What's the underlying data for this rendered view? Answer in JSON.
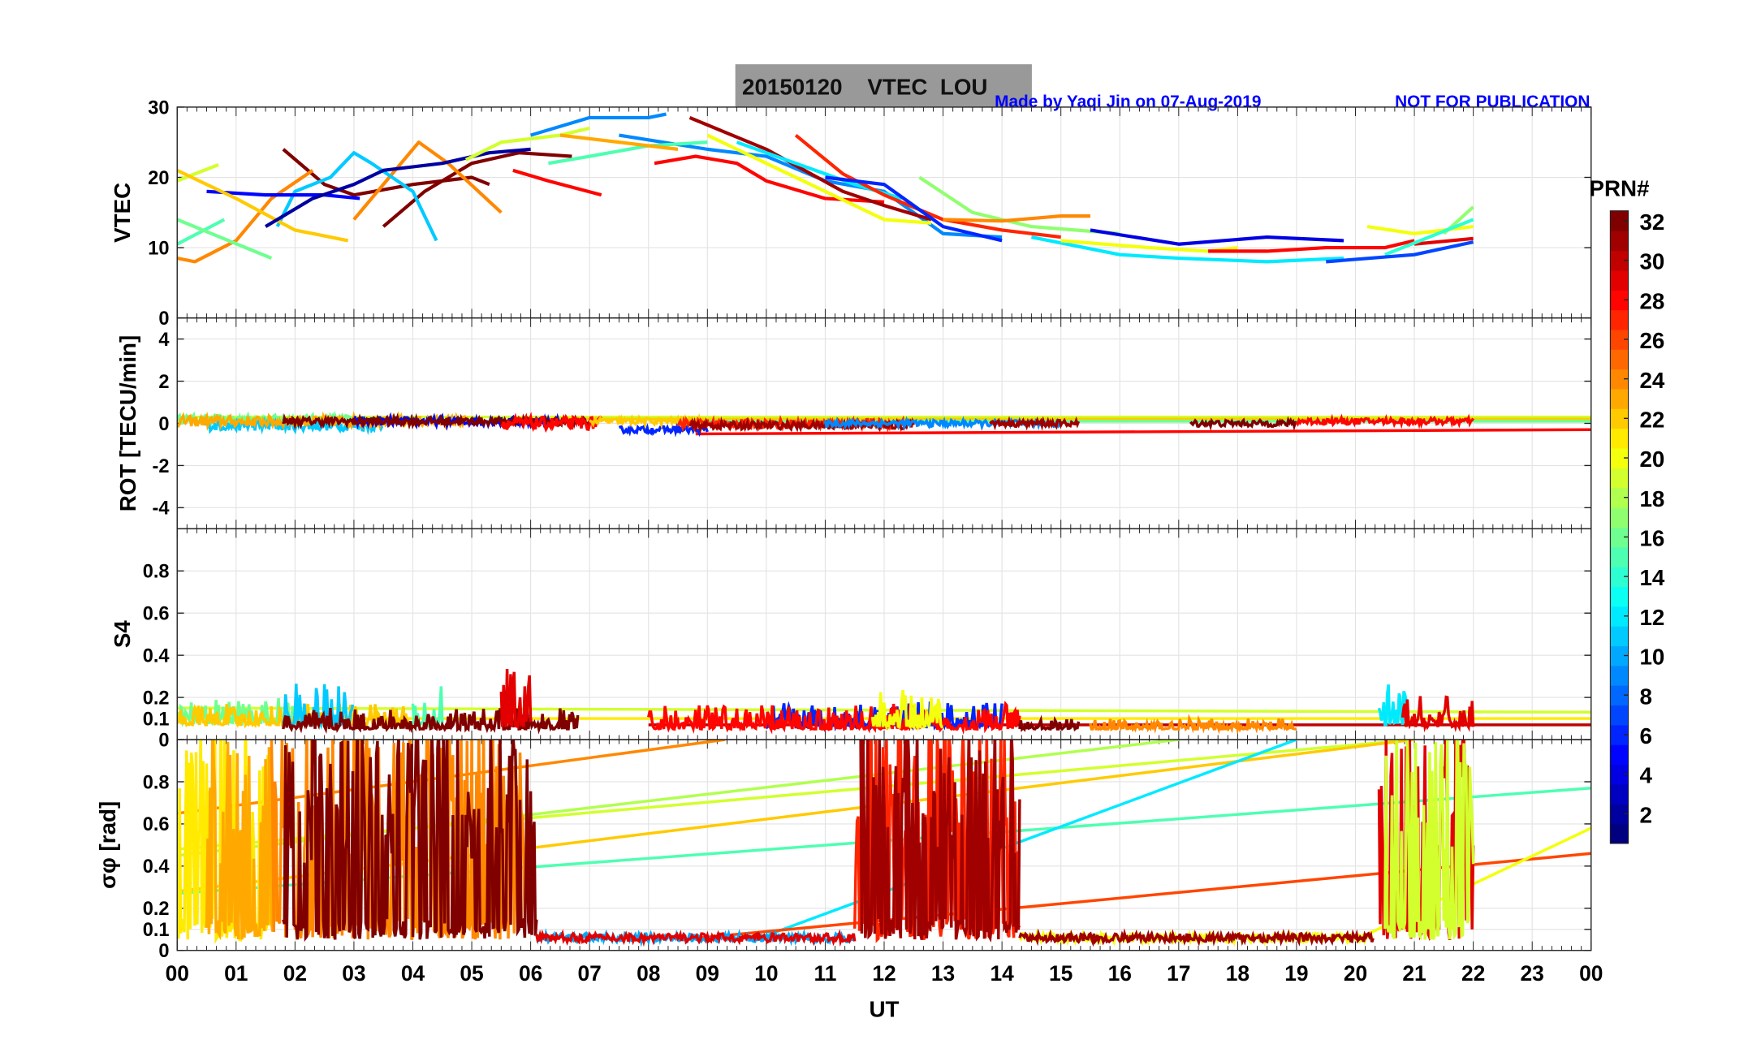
{
  "header": {
    "title": "20150120    VTEC  LOU",
    "credit": "Made by Yaqi Jin on 07-Aug-2019",
    "notice": "NOT FOR PUBLICATION"
  },
  "colorbar": {
    "label": "PRN#",
    "range": [
      1,
      32
    ],
    "ticks": [
      "2",
      "4",
      "6",
      "8",
      "10",
      "12",
      "14",
      "16",
      "18",
      "20",
      "22",
      "24",
      "26",
      "28",
      "30",
      "32"
    ]
  },
  "xaxis": {
    "label": "UT",
    "range": [
      0,
      24
    ],
    "ticks": [
      "00",
      "01",
      "02",
      "03",
      "04",
      "05",
      "06",
      "07",
      "08",
      "09",
      "10",
      "11",
      "12",
      "13",
      "14",
      "15",
      "16",
      "17",
      "18",
      "19",
      "20",
      "21",
      "22",
      "23",
      "00"
    ]
  },
  "chart_data": [
    {
      "type": "line",
      "name": "vtec",
      "ylabel": "VTEC",
      "ylim": [
        0,
        30
      ],
      "yticks": [
        0,
        10,
        20,
        30
      ],
      "ytick_labels": [
        "0",
        "10",
        "20",
        "30"
      ],
      "series": [
        {
          "prn": 32,
          "x": [
            1.8,
            2.5,
            3,
            4,
            5,
            5.3
          ],
          "y": [
            24,
            19,
            17.5,
            19,
            20,
            19
          ]
        },
        {
          "prn": 32,
          "x": [
            3.5,
            4.2,
            5,
            5.8,
            6.7
          ],
          "y": [
            13,
            18,
            22,
            23.5,
            23
          ]
        },
        {
          "prn": 24,
          "x": [
            0,
            0.3,
            1,
            1.6,
            2.3
          ],
          "y": [
            8.5,
            8,
            11,
            17,
            21
          ]
        },
        {
          "prn": 24,
          "x": [
            3,
            3.6,
            4.1,
            4.6,
            5.5
          ],
          "y": [
            14,
            20,
            25,
            22,
            15
          ]
        },
        {
          "prn": 11,
          "x": [
            1.7,
            2,
            2.6,
            3,
            3.3,
            4,
            4.4
          ],
          "y": [
            13,
            18,
            20,
            23.5,
            22,
            18,
            11
          ]
        },
        {
          "prn": 5,
          "x": [
            0.5,
            1.5,
            2.5,
            3.1
          ],
          "y": [
            18,
            17.5,
            17.5,
            17
          ]
        },
        {
          "prn": 15,
          "x": [
            0,
            0.8
          ],
          "y": [
            10.5,
            14
          ]
        },
        {
          "prn": 19,
          "x": [
            0,
            0.7
          ],
          "y": [
            19.5,
            21.8
          ]
        },
        {
          "prn": 16,
          "x": [
            0,
            1.6
          ],
          "y": [
            14,
            8.5
          ]
        },
        {
          "prn": 22,
          "x": [
            0,
            1,
            2,
            2.9
          ],
          "y": [
            21,
            17,
            12.5,
            11
          ]
        },
        {
          "prn": 2,
          "x": [
            1.5,
            2.3,
            3,
            3.5,
            4.5,
            5.3,
            6
          ],
          "y": [
            13,
            17,
            19,
            21,
            22,
            23.5,
            24
          ]
        },
        {
          "prn": 19,
          "x": [
            4.9,
            5.5,
            6.5,
            7
          ],
          "y": [
            22.5,
            25,
            26,
            27
          ]
        },
        {
          "prn": 9,
          "x": [
            6,
            7,
            8,
            8.3
          ],
          "y": [
            26,
            28.5,
            28.5,
            29
          ]
        },
        {
          "prn": 9,
          "x": [
            7.5,
            9,
            10,
            11,
            12,
            12.5,
            13,
            14
          ],
          "y": [
            26,
            24,
            23,
            19.5,
            18,
            15,
            12,
            11.5
          ]
        },
        {
          "prn": 15,
          "x": [
            6.3,
            7,
            8,
            9
          ],
          "y": [
            22,
            23,
            24.5,
            25
          ]
        },
        {
          "prn": 23,
          "x": [
            6.5,
            7.5,
            8.5
          ],
          "y": [
            26,
            25,
            24
          ]
        },
        {
          "prn": 28,
          "x": [
            8.1,
            8.8,
            9.5,
            10,
            11,
            12
          ],
          "y": [
            22,
            23,
            22,
            19.5,
            17,
            16.5
          ]
        },
        {
          "prn": 31,
          "x": [
            8.7,
            10,
            11.3,
            12,
            12.8
          ],
          "y": [
            28.5,
            24,
            18,
            16,
            14
          ]
        },
        {
          "prn": 12,
          "x": [
            9.5,
            10.5,
            11.5,
            12.3
          ],
          "y": [
            25,
            22,
            19,
            17
          ]
        },
        {
          "prn": 20,
          "x": [
            9,
            10,
            11,
            12,
            12.8
          ],
          "y": [
            26,
            22,
            18,
            14,
            13.5
          ]
        },
        {
          "prn": 27,
          "x": [
            10.5,
            11.3,
            12,
            13,
            14,
            15
          ],
          "y": [
            26,
            20.5,
            17.5,
            14,
            12.5,
            11.5
          ]
        },
        {
          "prn": 6,
          "x": [
            11,
            12,
            12.5,
            13,
            14
          ],
          "y": [
            20,
            19,
            16,
            13,
            11
          ]
        },
        {
          "prn": 17,
          "x": [
            12.6,
            13.5,
            14.5,
            16
          ],
          "y": [
            20,
            15,
            13,
            12
          ]
        },
        {
          "prn": 24,
          "x": [
            13,
            14,
            15,
            15.5
          ],
          "y": [
            14,
            13.8,
            14.5,
            14.5
          ]
        },
        {
          "prn": 4,
          "x": [
            15.5,
            17,
            18.5,
            19.8
          ],
          "y": [
            12.5,
            10.5,
            11.5,
            11
          ]
        },
        {
          "prn": 12,
          "x": [
            14.5,
            16,
            17,
            18.5,
            19.8
          ],
          "y": [
            11.5,
            9,
            8.5,
            8,
            8.5
          ]
        },
        {
          "prn": 20,
          "x": [
            15,
            16.5,
            17.5,
            18
          ],
          "y": [
            11,
            10,
            9.5,
            10
          ]
        },
        {
          "prn": 28,
          "x": [
            17.5,
            18.5,
            19.5,
            20.5,
            21
          ],
          "y": [
            9.5,
            9.5,
            10,
            10,
            11
          ]
        },
        {
          "prn": 29,
          "x": [
            21,
            22
          ],
          "y": [
            10.5,
            11.3
          ]
        },
        {
          "prn": 17,
          "x": [
            21.5,
            22
          ],
          "y": [
            12,
            15.8
          ]
        },
        {
          "prn": 20,
          "x": [
            20.2,
            21,
            22
          ],
          "y": [
            13,
            12,
            13
          ]
        },
        {
          "prn": 14,
          "x": [
            20.5,
            22
          ],
          "y": [
            9,
            14
          ]
        },
        {
          "prn": 7,
          "x": [
            19.5,
            21,
            22
          ],
          "y": [
            8,
            9,
            10.8
          ]
        },
        {
          "prn": 28,
          "x": [
            5.7,
            6.3,
            7.2
          ],
          "y": [
            21,
            19.5,
            17.5
          ]
        }
      ]
    },
    {
      "type": "line",
      "name": "rot",
      "ylabel": "ROT [TECU/min]",
      "ylim": [
        -5,
        5
      ],
      "yticks": [
        -4,
        -2,
        0,
        2,
        4
      ],
      "ytick_labels": [
        "-4",
        "-2",
        "0",
        "2",
        "4"
      ],
      "segments": [
        {
          "prn": 16,
          "start": 0,
          "end": 3,
          "level": 0.2,
          "amp": 0.4
        },
        {
          "prn": 11,
          "start": 0.5,
          "end": 3.5,
          "level": -0.1,
          "amp": 0.5
        },
        {
          "prn": 23,
          "start": 0,
          "end": 5,
          "level": 0.1,
          "amp": 0.5
        },
        {
          "prn": 5,
          "start": 3,
          "end": 6.5,
          "level": 0.1,
          "amp": 0.4
        },
        {
          "prn": 32,
          "start": 1.8,
          "end": 7,
          "level": 0.1,
          "amp": 0.35
        },
        {
          "prn": 28,
          "start": 5.5,
          "end": 7.2,
          "level": 0.0,
          "amp": 0.6
        },
        {
          "prn": 6,
          "start": 7.5,
          "end": 9,
          "level": -0.3,
          "amp": 0.3
        },
        {
          "prn": 22,
          "start": 7,
          "end": 9,
          "level": 0.1,
          "amp": 0.3
        },
        {
          "prn": 27,
          "start": 8.5,
          "end": 12.5,
          "level": 0.0,
          "amp": 0.4
        },
        {
          "prn": 31,
          "start": 8.7,
          "end": 12.5,
          "level": -0.1,
          "amp": 0.35
        },
        {
          "prn": 9,
          "start": 11,
          "end": 15,
          "level": 0.0,
          "amp": 0.3
        },
        {
          "prn": 31,
          "start": 13.8,
          "end": 15.3,
          "level": 0.0,
          "amp": 0.3
        },
        {
          "prn": 32,
          "start": 17.2,
          "end": 19,
          "level": 0.0,
          "amp": 0.3
        },
        {
          "prn": 28,
          "start": 19,
          "end": 22,
          "level": 0.1,
          "amp": 0.3
        }
      ],
      "lines": [
        {
          "prn": 19,
          "x": [
            0,
            24
          ],
          "y": [
            0.3,
            0.3
          ]
        },
        {
          "prn": 22,
          "x": [
            6,
            24
          ],
          "y": [
            0.2,
            0.2
          ]
        },
        {
          "prn": 28,
          "x": [
            8.8,
            24
          ],
          "y": [
            -0.5,
            -0.3
          ]
        },
        {
          "prn": 16,
          "x": [
            9,
            24
          ],
          "y": [
            0.1,
            0.1
          ]
        }
      ]
    },
    {
      "type": "line",
      "name": "s4",
      "ylabel": "S4",
      "ylim": [
        0,
        1
      ],
      "yticks": [
        0,
        0.1,
        0.2,
        0.4,
        0.6,
        0.8
      ],
      "ytick_labels": [
        "0",
        "0.1",
        "0.2",
        "0.4",
        "0.6",
        "0.8"
      ],
      "segments": [
        {
          "prn": 16,
          "start": 0,
          "end": 2,
          "base": 0.08,
          "amp": 0.12
        },
        {
          "prn": 22,
          "start": 0,
          "end": 4,
          "base": 0.07,
          "amp": 0.1
        },
        {
          "prn": 11,
          "start": 1.8,
          "end": 3,
          "base": 0.07,
          "amp": 0.2
        },
        {
          "prn": 15,
          "start": 4,
          "end": 4.5,
          "base": 0.07,
          "amp": 0.22
        },
        {
          "prn": 32,
          "start": 1.8,
          "end": 6.8,
          "base": 0.05,
          "amp": 0.1
        },
        {
          "prn": 29,
          "start": 5.5,
          "end": 6,
          "base": 0.06,
          "amp": 0.28
        },
        {
          "prn": 6,
          "start": 10,
          "end": 14,
          "base": 0.06,
          "amp": 0.12
        },
        {
          "prn": 28,
          "start": 8,
          "end": 14.3,
          "base": 0.05,
          "amp": 0.12
        },
        {
          "prn": 20,
          "start": 11.8,
          "end": 13,
          "base": 0.06,
          "amp": 0.18
        },
        {
          "prn": 32,
          "start": 14.3,
          "end": 15.3,
          "base": 0.05,
          "amp": 0.05
        },
        {
          "prn": 24,
          "start": 15.5,
          "end": 19,
          "base": 0.05,
          "amp": 0.05
        },
        {
          "prn": 12,
          "start": 20.4,
          "end": 20.9,
          "base": 0.07,
          "amp": 0.2
        },
        {
          "prn": 29,
          "start": 20.8,
          "end": 22,
          "base": 0.06,
          "amp": 0.15
        }
      ],
      "lines": [
        {
          "prn": 19,
          "x": [
            0,
            24
          ],
          "y": [
            0.15,
            0.13
          ]
        },
        {
          "prn": 30,
          "x": [
            8,
            24
          ],
          "y": [
            0.07,
            0.07
          ]
        },
        {
          "prn": 21,
          "x": [
            0,
            24
          ],
          "y": [
            0.1,
            0.1
          ]
        }
      ]
    },
    {
      "type": "line",
      "name": "sigma_phi",
      "ylabel": "σφ [rad]",
      "ylim": [
        0,
        1
      ],
      "yticks": [
        0,
        0.1,
        0.2,
        0.4,
        0.6,
        0.8
      ],
      "ytick_labels": [
        "0",
        "0.1",
        "0.2",
        "0.4",
        "0.6",
        "0.8"
      ],
      "segments": [
        {
          "prn": 21,
          "start": 0,
          "end": 1.6,
          "type": "burst"
        },
        {
          "prn": 23,
          "start": 0.5,
          "end": 1.7,
          "type": "burst"
        },
        {
          "prn": 24,
          "start": 1.6,
          "end": 5.9,
          "type": "burst"
        },
        {
          "prn": 32,
          "start": 1.8,
          "end": 6.1,
          "type": "burst"
        },
        {
          "prn": 10,
          "start": 6.1,
          "end": 11.5,
          "type": "low"
        },
        {
          "prn": 29,
          "start": 6.1,
          "end": 11.5,
          "type": "low"
        },
        {
          "prn": 27,
          "start": 11.5,
          "end": 14.3,
          "type": "burst"
        },
        {
          "prn": 31,
          "start": 11.6,
          "end": 14.3,
          "type": "burst"
        },
        {
          "prn": 20,
          "start": 14.3,
          "end": 20.3,
          "type": "low"
        },
        {
          "prn": 31,
          "start": 14.3,
          "end": 20.3,
          "type": "low"
        },
        {
          "prn": 29,
          "start": 20.4,
          "end": 22,
          "type": "burst"
        },
        {
          "prn": 19,
          "start": 20.5,
          "end": 22,
          "type": "burst"
        }
      ],
      "lines": [
        {
          "prn": 24,
          "x": [
            0,
            9.3
          ],
          "y": [
            0.65,
            1.0
          ]
        },
        {
          "prn": 18,
          "x": [
            0,
            17
          ],
          "y": [
            0.45,
            1.0
          ]
        },
        {
          "prn": 19,
          "x": [
            0,
            21
          ],
          "y": [
            0.48,
            1.0
          ]
        },
        {
          "prn": 22,
          "x": [
            0,
            21
          ],
          "y": [
            0.28,
            1.0
          ]
        },
        {
          "prn": 15,
          "x": [
            0,
            24
          ],
          "y": [
            0.27,
            0.77
          ]
        },
        {
          "prn": 12,
          "x": [
            9.8,
            19
          ],
          "y": [
            0.05,
            1.0
          ]
        },
        {
          "prn": 26,
          "x": [
            8.5,
            24
          ],
          "y": [
            0.05,
            0.46
          ]
        },
        {
          "prn": 20,
          "x": [
            20,
            24
          ],
          "y": [
            0.05,
            0.58
          ]
        }
      ]
    }
  ]
}
